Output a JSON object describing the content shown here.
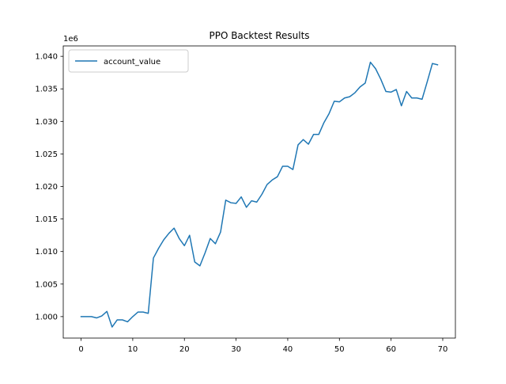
{
  "chart_data": {
    "type": "line",
    "title": "PPO Backtest Results",
    "xlabel": "",
    "ylabel": "",
    "y_offset_label": "1e6",
    "xlim": [
      -3.45,
      72.45
    ],
    "ylim": [
      996700,
      1041600
    ],
    "x_ticks": [
      0,
      10,
      20,
      30,
      40,
      50,
      60,
      70
    ],
    "x_tick_labels": [
      "0",
      "10",
      "20",
      "30",
      "40",
      "50",
      "60",
      "70"
    ],
    "y_ticks": [
      1000000,
      1005000,
      1010000,
      1015000,
      1020000,
      1025000,
      1030000,
      1035000,
      1040000
    ],
    "y_tick_labels": [
      "1.000",
      "1.005",
      "1.010",
      "1.015",
      "1.020",
      "1.025",
      "1.030",
      "1.035",
      "1.040"
    ],
    "grid": false,
    "legend_position": "top-left",
    "series": [
      {
        "name": "account_value",
        "color": "#1f77b4",
        "x": [
          0,
          1,
          2,
          3,
          4,
          5,
          6,
          7,
          8,
          9,
          10,
          11,
          12,
          13,
          14,
          15,
          16,
          17,
          18,
          19,
          20,
          21,
          22,
          23,
          24,
          25,
          26,
          27,
          28,
          29,
          30,
          31,
          32,
          33,
          34,
          35,
          36,
          37,
          38,
          39,
          40,
          41,
          42,
          43,
          44,
          45,
          46,
          47,
          48,
          49,
          50,
          51,
          52,
          53,
          54,
          55,
          56,
          57,
          58,
          59,
          60,
          61,
          62,
          63,
          64,
          65,
          66,
          67,
          68,
          69
        ],
        "values": [
          1000000,
          1000000,
          1000000,
          999800,
          1000100,
          1000800,
          998400,
          999500,
          999500,
          999200,
          1000000,
          1000700,
          1000700,
          1000500,
          1009000,
          1010500,
          1011800,
          1012800,
          1013600,
          1012000,
          1010900,
          1012500,
          1008400,
          1007800,
          1009800,
          1012000,
          1011200,
          1013000,
          1017900,
          1017500,
          1017400,
          1018400,
          1016800,
          1017800,
          1017600,
          1018800,
          1020300,
          1021000,
          1021500,
          1023100,
          1023100,
          1022600,
          1026400,
          1027200,
          1026500,
          1028000,
          1028000,
          1029800,
          1031200,
          1033100,
          1033000,
          1033600,
          1033800,
          1034400,
          1035300,
          1035900,
          1039100,
          1038100,
          1036500,
          1034600,
          1034500,
          1034900,
          1032400,
          1034600,
          1033600,
          1033600,
          1033400,
          1036100,
          1038900,
          1038700
        ]
      }
    ]
  }
}
